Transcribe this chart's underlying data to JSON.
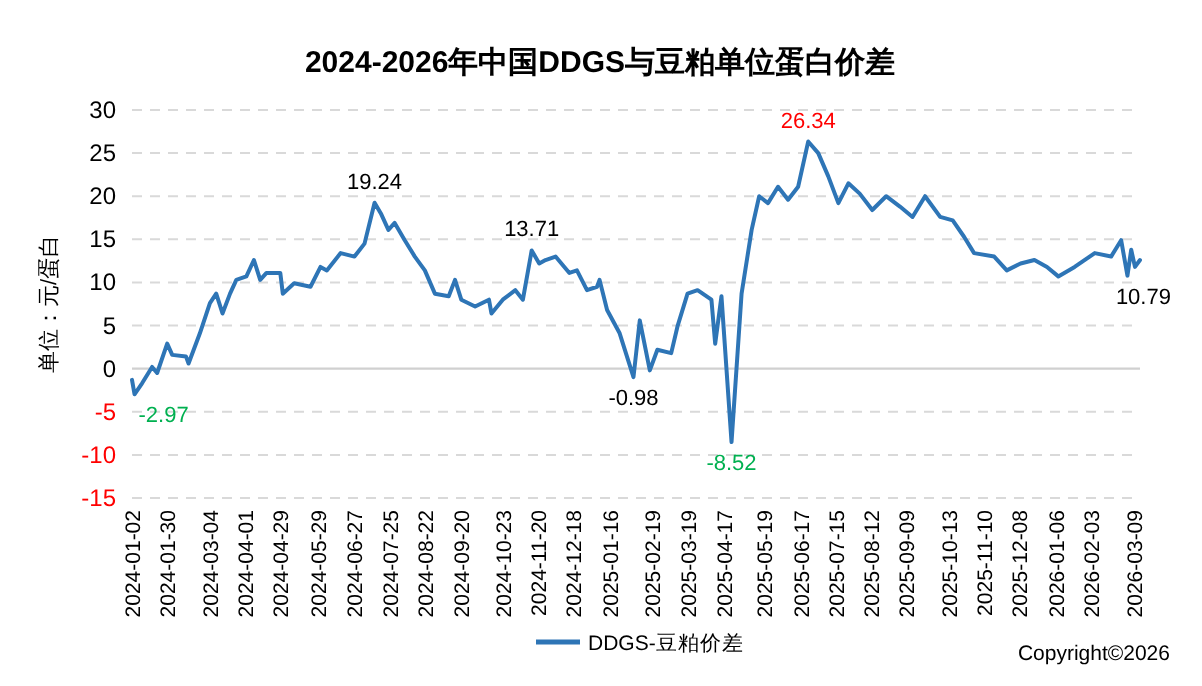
{
  "chart_data": {
    "type": "line",
    "title": "2024-2026年中国DDGS与豆粕单位蛋白价差",
    "ylabel": "单位：元/蛋白",
    "x": [
      "2024-01-02",
      "2024-01-04",
      "2024-01-10",
      "2024-01-18",
      "2024-01-22",
      "2024-01-30",
      "2024-02-03",
      "2024-02-14",
      "2024-02-16",
      "2024-02-25",
      "2024-03-04",
      "2024-03-09",
      "2024-03-14",
      "2024-03-20",
      "2024-03-25",
      "2024-04-02",
      "2024-04-08",
      "2024-04-13",
      "2024-04-18",
      "2024-04-29",
      "2024-05-01",
      "2024-05-10",
      "2024-05-23",
      "2024-05-31",
      "2024-06-05",
      "2024-06-16",
      "2024-06-27",
      "2024-07-05",
      "2024-07-13",
      "2024-07-18",
      "2024-07-24",
      "2024-07-29",
      "2024-08-06",
      "2024-08-14",
      "2024-08-22",
      "2024-08-30",
      "2024-09-10",
      "2024-09-15",
      "2024-09-20",
      "2024-10-01",
      "2024-10-12",
      "2024-10-14",
      "2024-10-23",
      "2024-11-02",
      "2024-11-08",
      "2024-11-15",
      "2024-11-21",
      "2024-11-26",
      "2024-12-04",
      "2024-12-15",
      "2024-12-21",
      "2024-12-29",
      "2025-01-06",
      "2025-01-08",
      "2025-01-14",
      "2025-01-24",
      "2025-02-04",
      "2025-02-09",
      "2025-02-17",
      "2025-02-23",
      "2025-03-06",
      "2025-03-11",
      "2025-03-19",
      "2025-03-27",
      "2025-04-07",
      "2025-04-10",
      "2025-04-15",
      "2025-04-23",
      "2025-05-01",
      "2025-05-09",
      "2025-05-15",
      "2025-05-22",
      "2025-05-30",
      "2025-06-07",
      "2025-06-15",
      "2025-06-23",
      "2025-07-01",
      "2025-07-09",
      "2025-07-17",
      "2025-07-25",
      "2025-08-03",
      "2025-08-13",
      "2025-08-24",
      "2025-09-04",
      "2025-09-14",
      "2025-09-24",
      "2025-10-06",
      "2025-10-16",
      "2025-10-25",
      "2025-11-02",
      "2025-11-18",
      "2025-11-28",
      "2025-12-09",
      "2025-12-20",
      "2025-12-30",
      "2026-01-08",
      "2026-01-21",
      "2026-02-06",
      "2026-02-19",
      "2026-02-27",
      "2026-03-04",
      "2026-03-07",
      "2026-03-10",
      "2026-03-14"
    ],
    "series": [
      {
        "name": "DDGS-豆粕价差",
        "color": "#2e75b6",
        "values": [
          -1.3,
          -2.97,
          -1.7,
          0.2,
          -0.5,
          2.9,
          1.6,
          1.4,
          0.6,
          4.1,
          7.6,
          8.7,
          6.4,
          8.7,
          10.3,
          10.7,
          12.6,
          10.3,
          11.1,
          11.1,
          8.7,
          9.9,
          9.5,
          11.8,
          11.4,
          13.4,
          13.0,
          14.5,
          19.24,
          18.0,
          16.1,
          16.9,
          14.9,
          13.0,
          11.4,
          8.7,
          8.4,
          10.3,
          8.0,
          7.2,
          8.0,
          6.4,
          8.0,
          9.1,
          8.0,
          13.71,
          12.2,
          12.6,
          13.0,
          11.1,
          11.4,
          9.1,
          9.5,
          10.3,
          6.8,
          4.1,
          -0.98,
          5.6,
          -0.2,
          2.2,
          1.8,
          4.9,
          8.7,
          9.1,
          8.0,
          2.9,
          8.4,
          -8.52,
          8.7,
          16.1,
          20.0,
          19.2,
          21.1,
          19.6,
          21.1,
          26.34,
          25.0,
          22.3,
          19.2,
          21.5,
          20.3,
          18.4,
          20.0,
          18.8,
          17.6,
          20.0,
          17.6,
          17.2,
          15.3,
          13.4,
          13.0,
          11.4,
          12.2,
          12.6,
          11.8,
          10.7,
          11.8,
          13.4,
          13.0,
          14.9,
          10.79,
          13.8,
          11.8,
          12.6
        ]
      }
    ],
    "xlim": [
      "2024-01-02",
      "2026-03-14"
    ],
    "xticks": [
      "2024-01-02",
      "2024-01-30",
      "2024-03-04",
      "2024-04-01",
      "2024-04-29",
      "2024-05-29",
      "2024-06-27",
      "2024-07-25",
      "2024-08-22",
      "2024-09-20",
      "2024-10-23",
      "2024-11-20",
      "2024-12-18",
      "2025-01-16",
      "2025-02-19",
      "2025-03-19",
      "2025-04-17",
      "2025-05-19",
      "2025-06-17",
      "2025-07-15",
      "2025-08-12",
      "2025-09-09",
      "2025-10-13",
      "2025-11-10",
      "2025-12-08",
      "2026-01-06",
      "2026-02-03",
      "2026-03-09"
    ],
    "ylim": [
      -15,
      30
    ],
    "yticks": [
      -15,
      -10,
      -5,
      0,
      5,
      10,
      15,
      20,
      25,
      30
    ],
    "grid": "y",
    "legend": "bottom",
    "line_style": "solid",
    "marker": "none",
    "annotations": [
      {
        "text": "-2.97",
        "x": "2024-01-04",
        "y": -2.97
      },
      {
        "text": "19.24",
        "x": "2024-07-13",
        "y": 19.24
      },
      {
        "text": "13.71",
        "x": "2024-11-15",
        "y": 13.71
      },
      {
        "text": "-0.98",
        "x": "2025-02-04",
        "y": -0.98
      },
      {
        "text": "-8.52",
        "x": "2025-04-23",
        "y": -8.52
      },
      {
        "text": "26.34",
        "x": "2025-06-23",
        "y": 26.34
      },
      {
        "text": "10.79",
        "x": "2026-03-04",
        "y": 10.79
      },
      "Copyright©2026"
    ]
  }
}
